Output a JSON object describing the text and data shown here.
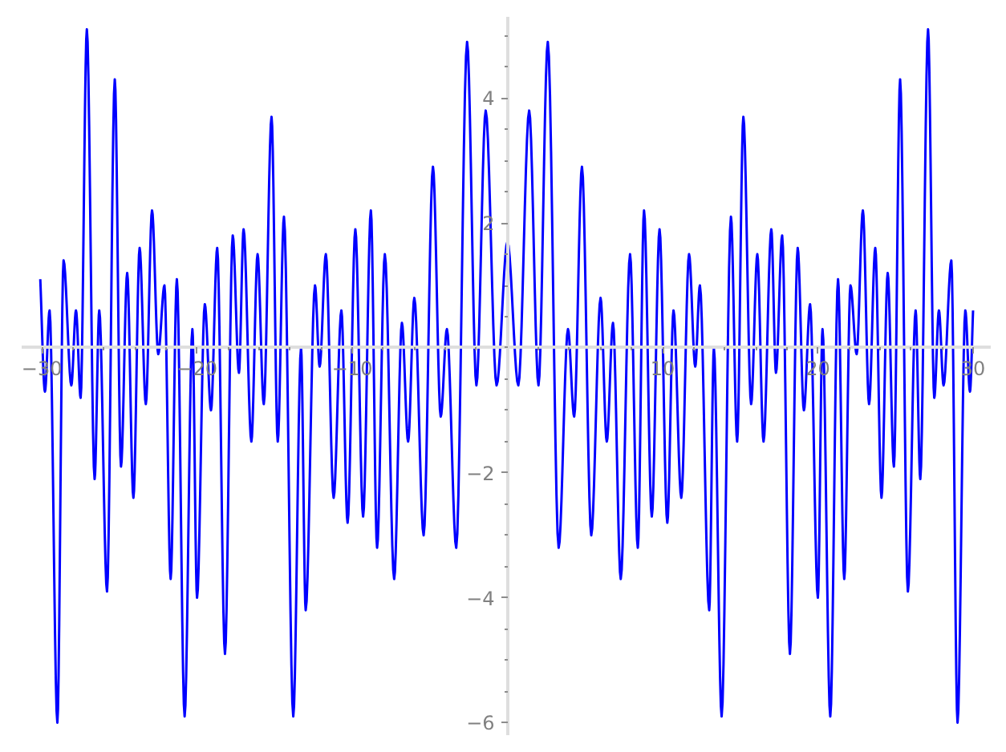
{
  "chart_data": {
    "type": "line",
    "color": "#0000ff",
    "grid": false,
    "x": [
      -30.1,
      -29.8,
      -29.5,
      -29.0,
      -28.6,
      -28.1,
      -27.8,
      -27.5,
      -27.1,
      -26.6,
      -26.3,
      -25.8,
      -25.3,
      -24.9,
      -24.5,
      -24.1,
      -23.7,
      -23.3,
      -22.9,
      -22.5,
      -22.1,
      -21.7,
      -21.3,
      -20.8,
      -20.3,
      -20.0,
      -19.5,
      -19.1,
      -18.7,
      -18.2,
      -17.7,
      -17.3,
      -17.0,
      -16.5,
      -16.1,
      -15.7,
      -15.2,
      -14.8,
      -14.4,
      -13.8,
      -13.3,
      -13.0,
      -12.4,
      -12.1,
      -11.7,
      -11.2,
      -10.7,
      -10.3,
      -9.8,
      -9.3,
      -8.8,
      -8.4,
      -7.9,
      -7.3,
      -6.8,
      -6.4,
      -6.0,
      -5.4,
      -4.8,
      -4.3,
      -3.9,
      -3.3,
      -2.6,
      -2.0,
      -1.4,
      -0.7,
      0.0,
      0.7,
      1.4,
      2.0,
      2.6,
      3.3,
      3.9,
      4.3,
      4.8,
      5.4,
      6.0,
      6.4,
      6.8,
      7.3,
      7.9,
      8.4,
      8.8,
      9.3,
      9.8,
      10.3,
      10.7,
      11.2,
      11.7,
      12.1,
      12.4,
      13.0,
      13.3,
      13.8,
      14.4,
      14.8,
      15.2,
      15.7,
      16.1,
      16.5,
      17.0,
      17.3,
      17.7,
      18.2,
      18.7,
      19.1,
      19.5,
      20.0,
      20.3,
      20.8,
      21.3,
      21.7,
      22.1,
      22.5,
      22.9,
      23.3,
      23.7,
      24.1,
      24.5,
      24.9,
      25.3,
      25.8,
      26.3,
      26.6,
      27.1,
      27.5,
      27.8,
      28.1,
      28.6,
      29.0,
      29.5,
      29.8,
      30.0
    ],
    "values": [
      1.1,
      -0.7,
      0.6,
      -6.0,
      1.4,
      -0.6,
      0.6,
      -0.8,
      5.1,
      -2.1,
      0.6,
      -3.9,
      4.3,
      -1.9,
      1.2,
      -2.4,
      1.6,
      -0.9,
      2.2,
      -0.1,
      1.0,
      -3.7,
      1.1,
      -5.9,
      0.3,
      -4.0,
      0.7,
      -1.0,
      1.6,
      -4.9,
      1.8,
      -0.4,
      1.9,
      -1.5,
      1.5,
      -0.9,
      3.7,
      -1.5,
      2.1,
      -5.9,
      0.0,
      -4.2,
      1.0,
      -0.3,
      1.5,
      -2.4,
      0.6,
      -2.8,
      1.9,
      -2.7,
      2.2,
      -3.2,
      1.5,
      -3.7,
      0.4,
      -1.5,
      0.8,
      -3.0,
      2.9,
      -1.1,
      0.3,
      -3.2,
      4.9,
      -0.6,
      3.8,
      -0.6,
      1.7,
      -0.6,
      3.8,
      -0.6,
      4.9,
      -3.2,
      0.3,
      -1.1,
      2.9,
      -3.0,
      0.8,
      -1.5,
      0.4,
      -3.7,
      1.5,
      -3.2,
      2.2,
      -2.7,
      1.9,
      -2.8,
      0.6,
      -2.4,
      1.5,
      -0.3,
      1.0,
      -4.2,
      0.0,
      -5.9,
      2.1,
      -1.5,
      3.7,
      -0.9,
      1.5,
      -1.5,
      1.9,
      -0.4,
      1.8,
      -4.9,
      1.6,
      -1.0,
      0.7,
      -4.0,
      0.3,
      -5.9,
      1.1,
      -3.7,
      1.0,
      -0.1,
      2.2,
      -0.9,
      1.6,
      -2.4,
      1.2,
      -1.9,
      4.3,
      -3.9,
      0.6,
      -2.1,
      5.1,
      -0.8,
      0.6,
      -0.6,
      1.4,
      -6.0,
      0.6,
      -0.7,
      0.6
    ],
    "xlim": [
      -31.3,
      31.14
    ],
    "ylim": [
      -6.2,
      5.3
    ],
    "xticks": [
      {
        "value": -30,
        "label": "−30"
      },
      {
        "value": -28,
        "label": null
      },
      {
        "value": -26,
        "label": null
      },
      {
        "value": -24,
        "label": null
      },
      {
        "value": -22,
        "label": null
      },
      {
        "value": -20,
        "label": "−20"
      },
      {
        "value": -18,
        "label": null
      },
      {
        "value": -16,
        "label": null
      },
      {
        "value": -14,
        "label": null
      },
      {
        "value": -12,
        "label": null
      },
      {
        "value": -10,
        "label": "−10"
      },
      {
        "value": -8,
        "label": null
      },
      {
        "value": -6,
        "label": null
      },
      {
        "value": -4,
        "label": null
      },
      {
        "value": -2,
        "label": null
      },
      {
        "value": 2,
        "label": null
      },
      {
        "value": 4,
        "label": null
      },
      {
        "value": 6,
        "label": null
      },
      {
        "value": 8,
        "label": null
      },
      10,
      {
        "value": 12,
        "label": null
      },
      {
        "value": 14,
        "label": null
      },
      {
        "value": 16,
        "label": null
      },
      {
        "value": 18,
        "label": null
      },
      20,
      {
        "value": 22,
        "label": null
      },
      {
        "value": 24,
        "label": null
      },
      {
        "value": 26,
        "label": null
      },
      {
        "value": 28,
        "label": null
      },
      30
    ],
    "yticks": [
      {
        "value": -6,
        "label": "−6"
      },
      {
        "value": -5.5,
        "label": null
      },
      {
        "value": -5,
        "label": null
      },
      {
        "value": -4.5,
        "label": null
      },
      {
        "value": -4,
        "label": "−4"
      },
      {
        "value": -3.5,
        "label": null
      },
      {
        "value": -3,
        "label": null
      },
      {
        "value": -2.5,
        "label": null
      },
      {
        "value": -2,
        "label": "−2"
      },
      {
        "value": -1.5,
        "label": null
      },
      {
        "value": -1,
        "label": null
      },
      {
        "value": -0.5,
        "label": null
      },
      {
        "value": 0,
        "label": null
      },
      {
        "value": 0.5,
        "label": null
      },
      {
        "value": 1,
        "label": null
      },
      {
        "value": 1.5,
        "label": null
      },
      2,
      {
        "value": 2.5,
        "label": null
      },
      {
        "value": 3,
        "label": null
      },
      {
        "value": 3.5,
        "label": null
      },
      4,
      {
        "value": 4.5,
        "label": null
      },
      {
        "value": 5,
        "label": null
      }
    ]
  }
}
